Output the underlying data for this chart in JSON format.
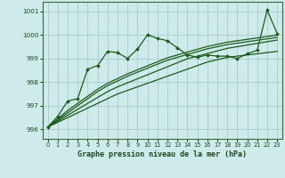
{
  "xlabel": "Graphe pression niveau de la mer (hPa)",
  "background_color": "#ceeaea",
  "grid_color": "#aed0d0",
  "line_color": "#1a5c1a",
  "ylim": [
    995.6,
    1001.4
  ],
  "xlim": [
    -0.5,
    23.5
  ],
  "yticks": [
    996,
    997,
    998,
    999,
    1000,
    1001
  ],
  "xticks": [
    0,
    1,
    2,
    3,
    4,
    5,
    6,
    7,
    8,
    9,
    10,
    11,
    12,
    13,
    14,
    15,
    16,
    17,
    18,
    19,
    20,
    21,
    22,
    23
  ],
  "main_series": [
    996.1,
    996.55,
    997.2,
    997.3,
    998.55,
    998.7,
    999.3,
    999.25,
    999.0,
    999.4,
    1000.0,
    999.85,
    999.75,
    999.45,
    999.15,
    999.05,
    999.15,
    999.1,
    999.1,
    999.0,
    999.2,
    999.35,
    1001.05,
    1000.05
  ],
  "trend_lines": [
    [
      996.1,
      996.3,
      996.5,
      996.7,
      996.9,
      997.1,
      997.3,
      997.5,
      997.65,
      997.8,
      997.95,
      998.1,
      998.25,
      998.4,
      998.55,
      998.7,
      998.85,
      998.95,
      999.05,
      999.1,
      999.15,
      999.2,
      999.25,
      999.3
    ],
    [
      996.1,
      996.35,
      996.6,
      996.85,
      997.1,
      997.35,
      997.6,
      997.8,
      997.97,
      998.14,
      998.31,
      998.48,
      998.65,
      998.82,
      998.99,
      999.1,
      999.21,
      999.32,
      999.43,
      999.5,
      999.57,
      999.64,
      999.71,
      999.78
    ],
    [
      996.1,
      996.4,
      996.7,
      997.0,
      997.3,
      997.6,
      997.85,
      998.05,
      998.25,
      998.42,
      998.59,
      998.76,
      998.93,
      999.05,
      999.17,
      999.29,
      999.41,
      999.5,
      999.59,
      999.65,
      999.71,
      999.77,
      999.83,
      999.89
    ],
    [
      996.1,
      996.45,
      996.8,
      997.1,
      997.4,
      997.7,
      997.95,
      998.15,
      998.35,
      998.52,
      998.69,
      998.86,
      999.03,
      999.15,
      999.27,
      999.39,
      999.51,
      999.6,
      999.69,
      999.75,
      999.81,
      999.87,
      999.93,
      999.99
    ]
  ]
}
